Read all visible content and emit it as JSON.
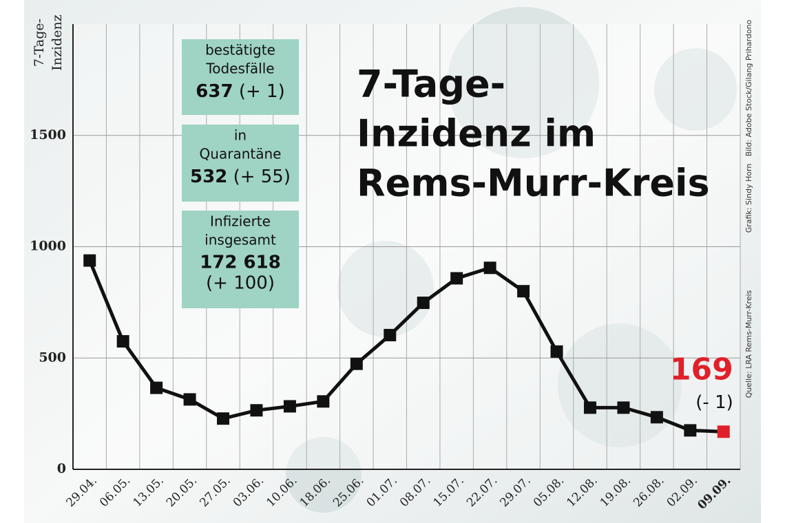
{
  "chart_data": {
    "type": "line",
    "title": [
      "7-Tage-",
      "Inzidenz im",
      "Rems-Murr-Kreis"
    ],
    "y_label": [
      "7-Tage-",
      "Inzidenz"
    ],
    "categories": [
      "29.04.",
      "06.05.",
      "13.05.",
      "20.05.",
      "27.05.",
      "03.06.",
      "10.06.",
      "18.06.",
      "25.06.",
      "01.07.",
      "08.07.",
      "15.07.",
      "22.07.",
      "29.07.",
      "05.08.",
      "12.08.",
      "19.08.",
      "26.08.",
      "02.09.",
      "09.09."
    ],
    "series": [
      {
        "name": "7-Tage-Inzidenz",
        "color": "#111111",
        "values": [
          938,
          575,
          366,
          314,
          228,
          265,
          283,
          305,
          474,
          603,
          748,
          858,
          905,
          800,
          529,
          277,
          277,
          234,
          175,
          169
        ]
      }
    ],
    "highlight_color": "#e0202a",
    "last_value_change": "(- 1)",
    "ylim": [
      0,
      2000
    ],
    "yticks": [
      0,
      500,
      1000,
      1500
    ],
    "grid": true
  },
  "info_boxes": [
    {
      "label": [
        "bestätigte",
        "Todesfälle"
      ],
      "number": "637",
      "change": "(+ 1)"
    },
    {
      "label": [
        "in",
        "Quarantäne"
      ],
      "number": "532",
      "change": "(+ 55)"
    },
    {
      "label": [
        "Infizierte",
        "insgesamt"
      ],
      "number": "172 618",
      "change": "(+ 100)"
    }
  ],
  "credits": [
    "Quelle: LRA Rems-Murr-Kreis",
    "Grafik: Sindy Horn",
    "Bild: Adobe Stock/Gilang Prihardono"
  ]
}
